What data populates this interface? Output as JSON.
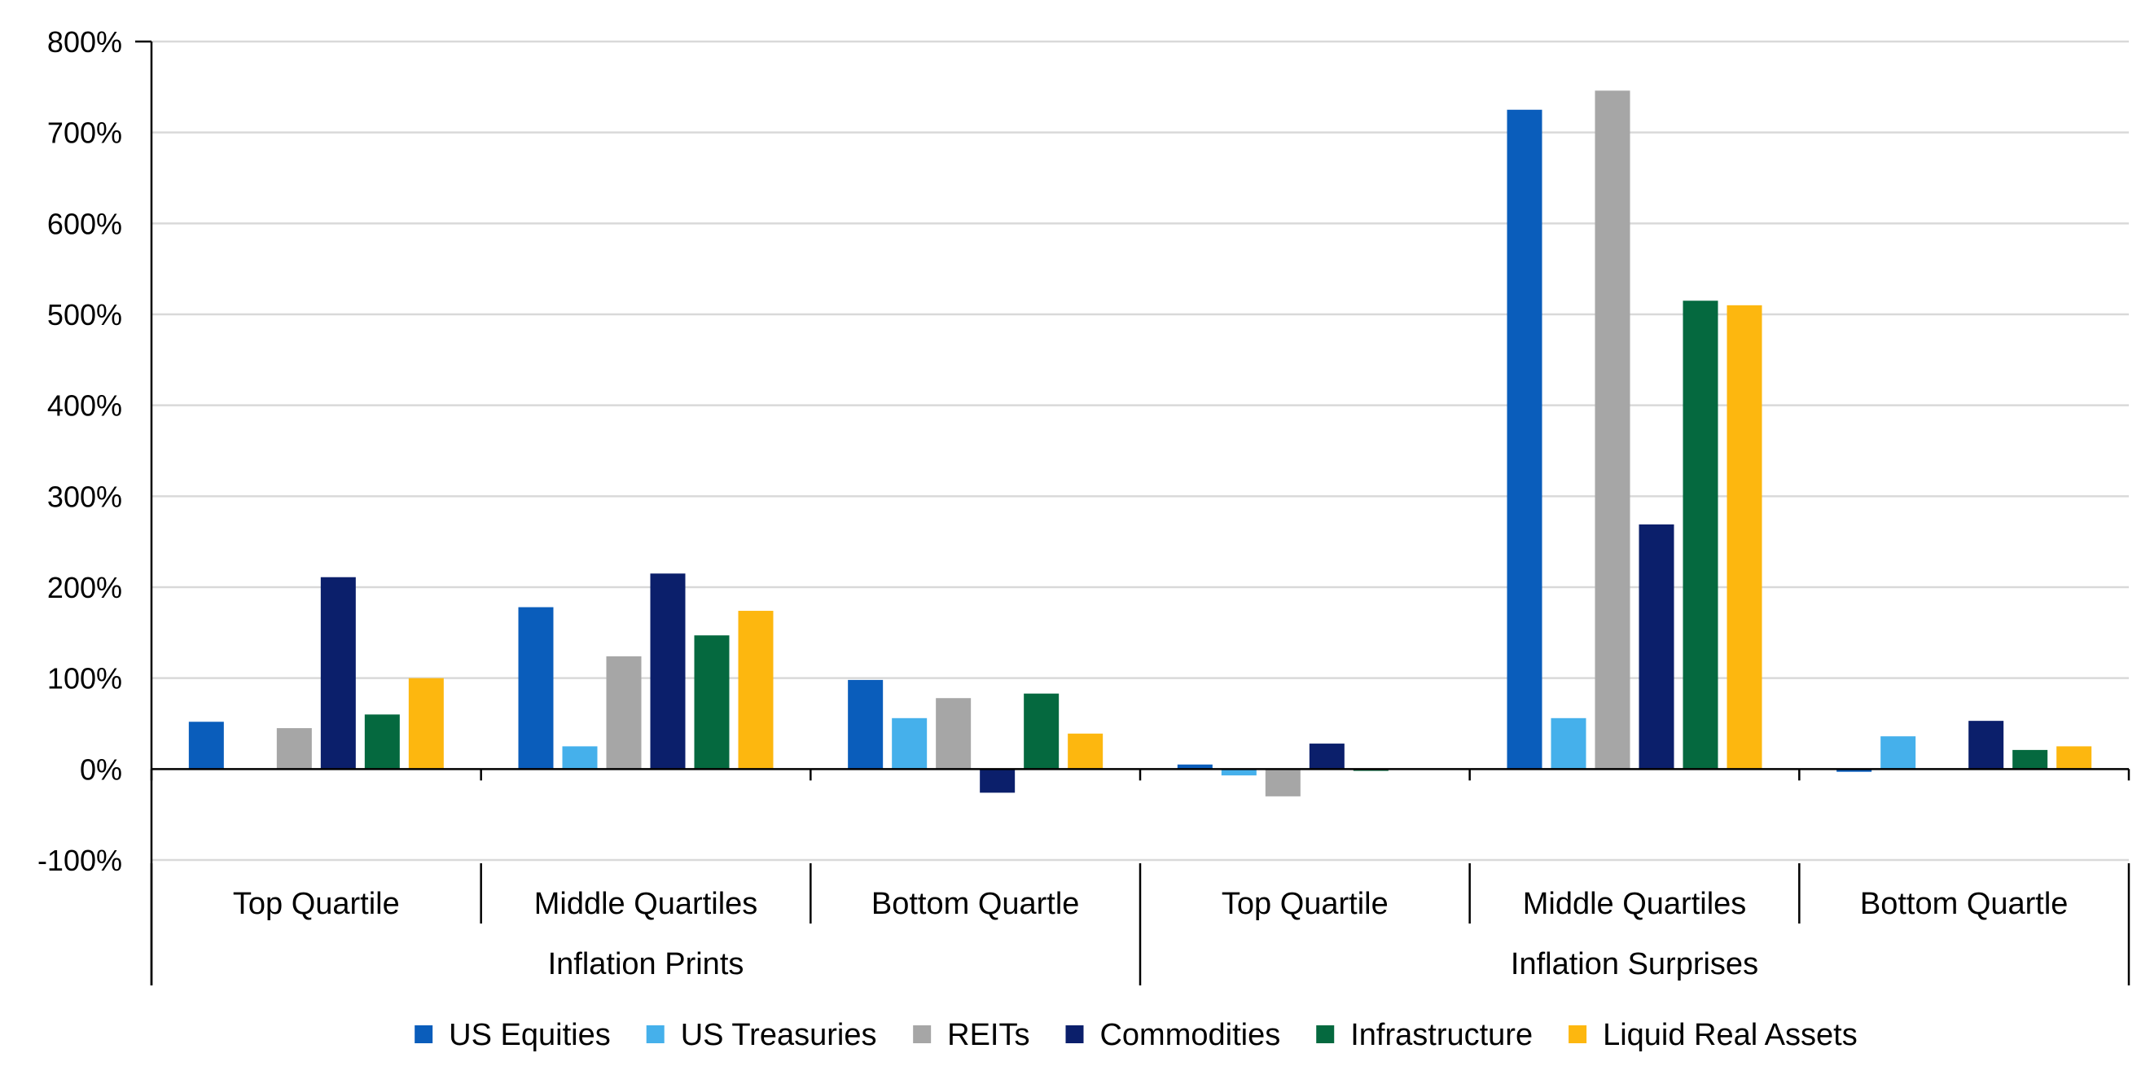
{
  "chart_data": {
    "type": "bar",
    "groups": [
      {
        "label": "Inflation Prints",
        "categories": [
          "Top Quartile",
          "Middle Quartiles",
          "Bottom Quartle"
        ]
      },
      {
        "label": "Inflation Surprises",
        "categories": [
          "Top Quartile",
          "Middle Quartiles",
          "Bottom Quartle"
        ]
      }
    ],
    "categories": [
      "Top Quartile",
      "Middle Quartiles",
      "Bottom Quartle",
      "Top Quartile",
      "Middle Quartiles",
      "Bottom Quartle"
    ],
    "series": [
      {
        "name": "US Equities",
        "color": "#0a5dbb",
        "values": [
          52,
          178,
          98,
          5,
          725,
          -3
        ]
      },
      {
        "name": "US Treasuries",
        "color": "#45b0eb",
        "values": [
          0,
          25,
          56,
          -7,
          56,
          36
        ]
      },
      {
        "name": "REITs",
        "color": "#a6a6a6",
        "values": [
          45,
          124,
          78,
          -30,
          746,
          0
        ]
      },
      {
        "name": "Commodities",
        "color": "#0b1f6b",
        "values": [
          211,
          215,
          -26,
          28,
          269,
          53
        ]
      },
      {
        "name": "Infrastructure",
        "color": "#05693f",
        "values": [
          60,
          147,
          83,
          -2,
          515,
          21
        ]
      },
      {
        "name": "Liquid Real Assets",
        "color": "#fdb70f",
        "values": [
          100,
          174,
          39,
          0,
          510,
          25
        ]
      }
    ],
    "ylim": [
      -100,
      800
    ],
    "yticks": [
      -100,
      0,
      100,
      200,
      300,
      400,
      500,
      600,
      700,
      800
    ],
    "ytick_labels": [
      "-100%",
      "0%",
      "100%",
      "200%",
      "300%",
      "400%",
      "500%",
      "600%",
      "700%",
      "800%"
    ],
    "grid": true,
    "legend_position": "bottom",
    "title": "",
    "xlabel": "",
    "ylabel": ""
  }
}
